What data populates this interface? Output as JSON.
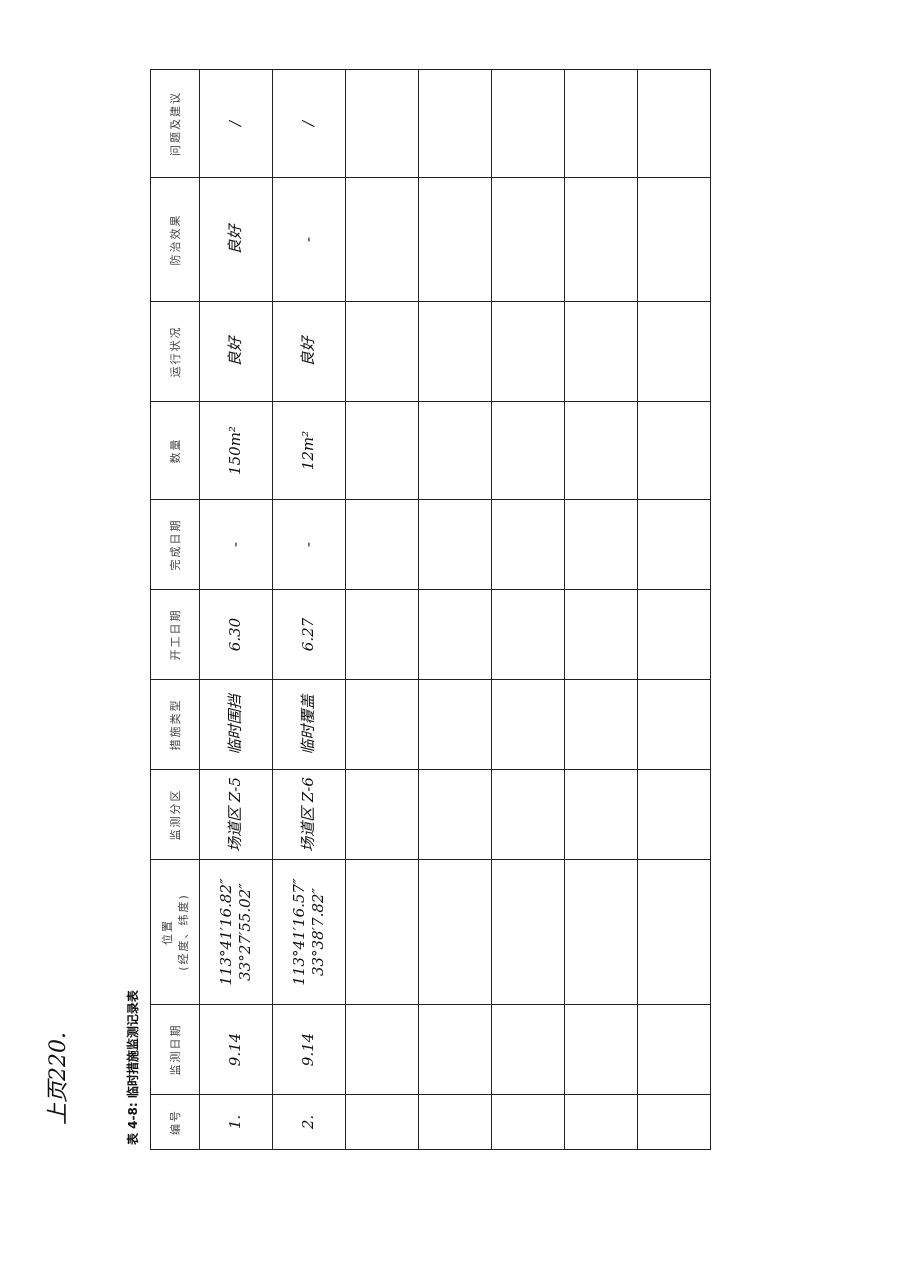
{
  "handwritten_note": "上页220.",
  "title": "表 4-8: 临时措施监测记录表",
  "headers": [
    "编号",
    "监测日期",
    "位置\n(经度、纬度)",
    "监测分区",
    "措施类型",
    "开工日期",
    "完成日期",
    "数量",
    "运行状况",
    "防治效果",
    "问题及建议"
  ],
  "rows": [
    {
      "no": "1.",
      "date": "9.14",
      "lon": "113°41′16.82″",
      "lat": "33°27′55.02″",
      "zone": "场道区 Z-5",
      "type": "临时围挡",
      "start": "6.30",
      "end": "-",
      "qty": "150m²",
      "status": "良好",
      "effect": "良好",
      "issues": "/"
    },
    {
      "no": "2.",
      "date": "9.14",
      "lon": "113°41′16.57″",
      "lat": "33°38′7.82″",
      "zone": "场道区 Z-6",
      "type": "临时覆盖",
      "start": "6.27",
      "end": "-",
      "qty": "12m²",
      "status": "良好",
      "effect": "-",
      "issues": "/"
    }
  ]
}
